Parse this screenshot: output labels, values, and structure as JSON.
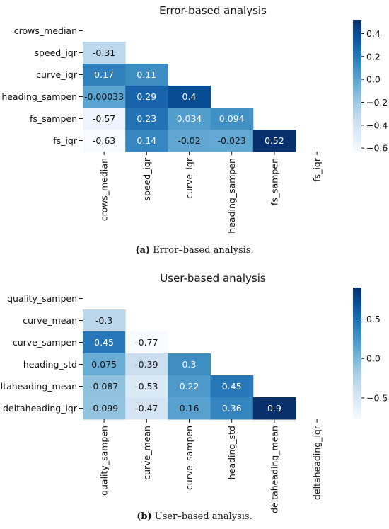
{
  "chart_data": [
    {
      "type": "heatmap",
      "title": "Error-based analysis",
      "row_labels": [
        "crows_median",
        "speed_iqr",
        "curve_iqr",
        "heading_sampen",
        "fs_sampen",
        "fs_iqr"
      ],
      "col_labels": [
        "crows_median",
        "speed_iqr",
        "curve_iqr",
        "heading_sampen",
        "fs_sampen",
        "fs_iqr"
      ],
      "values": [
        [
          null,
          null,
          null,
          null,
          null,
          null
        ],
        [
          -0.31,
          null,
          null,
          null,
          null,
          null
        ],
        [
          0.17,
          0.11,
          null,
          null,
          null,
          null
        ],
        [
          -0.00033,
          0.29,
          0.4,
          null,
          null,
          null
        ],
        [
          -0.57,
          0.23,
          0.034,
          0.094,
          null,
          null
        ],
        [
          -0.63,
          0.14,
          -0.02,
          -0.023,
          0.52,
          null
        ]
      ],
      "cell_labels": [
        [
          "",
          "",
          "",
          "",
          "",
          ""
        ],
        [
          "-0.31",
          "",
          "",
          "",
          "",
          ""
        ],
        [
          "0.17",
          "0.11",
          "",
          "",
          "",
          ""
        ],
        [
          "-0.00033",
          "0.29",
          "0.4",
          "",
          "",
          ""
        ],
        [
          "-0.57",
          "0.23",
          "0.034",
          "0.094",
          "",
          ""
        ],
        [
          "-0.63",
          "0.14",
          "-0.02",
          "-0.023",
          "0.52",
          ""
        ]
      ],
      "vmin": -0.63,
      "vmax": 0.52,
      "colorbar_ticks": [
        0.4,
        0.2,
        0.0,
        -0.2,
        -0.4,
        -0.6
      ],
      "colorbar_tick_labels": [
        "0.4",
        "0.2",
        "0.0",
        "−0.2",
        "−0.4",
        "−0.6"
      ],
      "colormap": "Blues",
      "colors": {
        "low": "#f7fbff",
        "high": "#08306b"
      },
      "caption_label": "(a)",
      "caption_text": " Error–based analysis."
    },
    {
      "type": "heatmap",
      "title": "User-based analysis",
      "row_labels": [
        "quality_sampen",
        "curve_mean",
        "curve_sampen",
        "heading_std",
        "deltaheading_mean",
        "deltaheading_iqr"
      ],
      "col_labels": [
        "quality_sampen",
        "curve_mean",
        "curve_sampen",
        "heading_std",
        "deltaheading_mean",
        "deltaheading_iqr"
      ],
      "values": [
        [
          null,
          null,
          null,
          null,
          null,
          null
        ],
        [
          -0.3,
          null,
          null,
          null,
          null,
          null
        ],
        [
          0.45,
          -0.77,
          null,
          null,
          null,
          null
        ],
        [
          0.075,
          -0.39,
          0.3,
          null,
          null,
          null
        ],
        [
          -0.087,
          -0.53,
          0.22,
          0.45,
          null,
          null
        ],
        [
          -0.099,
          -0.47,
          0.16,
          0.36,
          0.9,
          null
        ]
      ],
      "cell_labels": [
        [
          "",
          "",
          "",
          "",
          "",
          ""
        ],
        [
          "-0.3",
          "",
          "",
          "",
          "",
          ""
        ],
        [
          "0.45",
          "-0.77",
          "",
          "",
          "",
          ""
        ],
        [
          "0.075",
          "-0.39",
          "0.3",
          "",
          "",
          ""
        ],
        [
          "-0.087",
          "-0.53",
          "0.22",
          "0.45",
          "",
          ""
        ],
        [
          "-0.099",
          "-0.47",
          "0.16",
          "0.36",
          "0.9",
          ""
        ]
      ],
      "vmin": -0.77,
      "vmax": 0.9,
      "colorbar_ticks": [
        0.5,
        0.0,
        -0.5
      ],
      "colorbar_tick_labels": [
        "0.5",
        "0.0",
        "−0.5"
      ],
      "colormap": "Blues",
      "colors": {
        "low": "#f7fbff",
        "high": "#08306b"
      },
      "caption_label": "(b)",
      "caption_text": " User–based analysis."
    }
  ]
}
